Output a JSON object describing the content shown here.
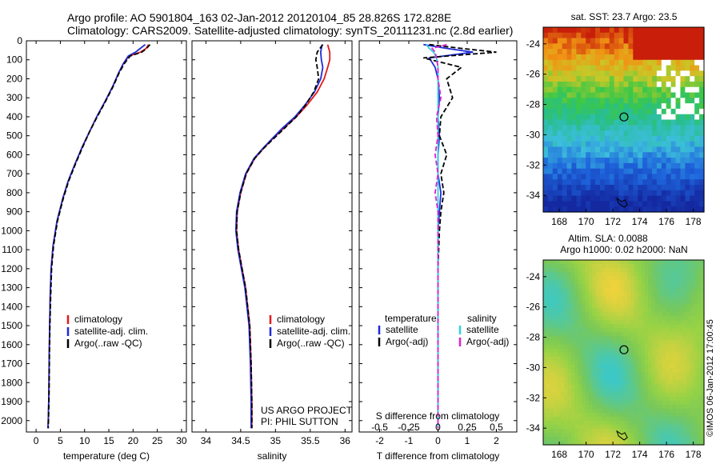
{
  "header": {
    "title_line1": "Argo profile: AO 5901804_163 02-Jan-2012 20120104_85 28.826S 172.828E",
    "title_line2": "Climatology: CARS2009. Satellite-adjusted climatology: synTS_20111231.nc (2.8d earlier)"
  },
  "side_note": "©IMOS 06-Jan-2012 17:00:45",
  "colors": {
    "climatology": "#e41a1c",
    "satellite": "#1f2bd6",
    "argo": "#000000",
    "sal_satellite": "#2fd3e0",
    "sal_argo": "#e020d0"
  },
  "chart_data": [
    {
      "type": "line",
      "panel": "temperature",
      "xlabel": "temperature (deg C)",
      "xlim": [
        -2,
        31
      ],
      "xticks": [
        0,
        5,
        10,
        15,
        20,
        25,
        30
      ],
      "ylim": [
        2060,
        0
      ],
      "yticks": [
        0,
        100,
        200,
        300,
        400,
        500,
        600,
        700,
        800,
        900,
        1000,
        1100,
        1200,
        1300,
        1400,
        1500,
        1600,
        1700,
        1800,
        1900,
        2000
      ],
      "legend": [
        "climatology",
        "satellite-adj. clim.",
        "Argo(..raw -QC)"
      ],
      "series": [
        {
          "name": "climatology",
          "color": "red",
          "x": [
            23.2,
            22.7,
            21.5,
            19.2,
            18,
            17,
            15.8,
            14.2,
            12.5,
            11,
            9.5,
            8,
            6.6,
            5.5,
            4.3,
            3.5,
            3.1,
            2.9,
            2.8,
            2.7,
            2.65,
            2.6,
            2.5,
            2.45
          ],
          "y": [
            20,
            40,
            60,
            80,
            120,
            170,
            240,
            320,
            400,
            480,
            560,
            650,
            740,
            830,
            950,
            1080,
            1200,
            1350,
            1500,
            1650,
            1800,
            1900,
            2000,
            2040
          ]
        },
        {
          "name": "satellite-adj. clim.",
          "color": "blue",
          "x": [
            22.5,
            21.5,
            20.5,
            19,
            18,
            17,
            15.8,
            14.2,
            12.5,
            11,
            9.5,
            8,
            6.6,
            5.5,
            4.3,
            3.5,
            3.1,
            2.9,
            2.8,
            2.7,
            2.65,
            2.6,
            2.5,
            2.45
          ],
          "y": [
            20,
            40,
            60,
            80,
            120,
            170,
            240,
            320,
            400,
            480,
            560,
            650,
            740,
            830,
            950,
            1080,
            1200,
            1350,
            1500,
            1650,
            1800,
            1900,
            2000,
            2040
          ]
        },
        {
          "name": "Argo(..raw -QC)",
          "color": "black",
          "dash": true,
          "x": [
            23.5,
            22.8,
            21.8,
            19.4,
            18.2,
            17.1,
            15.9,
            14.3,
            12.6,
            11,
            9.6,
            8.1,
            6.7,
            5.6,
            4.4,
            3.6,
            3.2,
            3.0,
            2.85,
            2.75,
            2.7,
            2.65,
            2.55,
            2.5
          ],
          "y": [
            20,
            40,
            60,
            80,
            120,
            170,
            240,
            320,
            400,
            480,
            560,
            650,
            740,
            830,
            950,
            1080,
            1200,
            1350,
            1500,
            1650,
            1800,
            1900,
            2000,
            2040
          ]
        }
      ]
    },
    {
      "type": "line",
      "panel": "salinity",
      "xlabel": "salinity",
      "xlim": [
        33.8,
        36.1
      ],
      "xticks": [
        34,
        34.5,
        35,
        35.5,
        36
      ],
      "ylim": [
        2060,
        0
      ],
      "legend": [
        "climatology",
        "satellite-adj. clim.",
        "Argo(..raw -QC)"
      ],
      "annotation": [
        "US ARGO PROJECT",
        "PI: PHIL SUTTON"
      ],
      "series": [
        {
          "name": "climatology",
          "color": "red",
          "x": [
            35.75,
            35.78,
            35.78,
            35.75,
            35.7,
            35.6,
            35.45,
            35.3,
            35.12,
            34.95,
            34.82,
            34.7,
            34.58,
            34.5,
            34.45,
            34.44,
            34.47,
            34.52,
            34.57,
            34.6,
            34.63,
            34.65,
            34.66,
            34.66
          ],
          "y": [
            20,
            60,
            100,
            140,
            200,
            270,
            340,
            400,
            460,
            520,
            570,
            620,
            700,
            800,
            900,
            1000,
            1100,
            1200,
            1300,
            1400,
            1500,
            1700,
            1900,
            2040
          ]
        },
        {
          "name": "satellite-adj. clim.",
          "color": "blue",
          "x": [
            35.67,
            35.65,
            35.66,
            35.68,
            35.65,
            35.56,
            35.42,
            35.28,
            35.1,
            34.94,
            34.81,
            34.69,
            34.57,
            34.49,
            34.44,
            34.43,
            34.46,
            34.51,
            34.56,
            34.59,
            34.62,
            34.64,
            34.65,
            34.65
          ],
          "y": [
            20,
            60,
            100,
            140,
            200,
            270,
            340,
            400,
            460,
            520,
            570,
            620,
            700,
            800,
            900,
            1000,
            1100,
            1200,
            1300,
            1400,
            1500,
            1700,
            1900,
            2040
          ]
        },
        {
          "name": "Argo(..raw -QC)",
          "color": "black",
          "dash": true,
          "x": [
            35.68,
            35.6,
            35.58,
            35.6,
            35.62,
            35.55,
            35.43,
            35.3,
            35.13,
            34.96,
            34.82,
            34.7,
            34.58,
            34.5,
            34.45,
            34.44,
            34.47,
            34.52,
            34.57,
            34.6,
            34.63,
            34.65,
            34.66,
            34.66
          ],
          "y": [
            20,
            60,
            100,
            140,
            200,
            270,
            340,
            400,
            460,
            520,
            570,
            620,
            700,
            800,
            900,
            1000,
            1100,
            1200,
            1300,
            1400,
            1500,
            1700,
            1900,
            2040
          ]
        }
      ]
    },
    {
      "type": "line",
      "panel": "difference",
      "xlabel": "T difference from climatology",
      "xlabel_top": "S difference from climatology",
      "xlim": [
        -2.7,
        2.7
      ],
      "xticks": [
        -2,
        -1,
        0,
        1,
        2
      ],
      "top_ticklabels": [
        "-0.5",
        "-0.25",
        "0",
        "0.25",
        "0.5"
      ],
      "top_tick_x": [
        -2,
        -1,
        0,
        1,
        2
      ],
      "ylim": [
        2060,
        0
      ],
      "legend": {
        "temperature": [
          "satellite",
          "Argo(-adj)"
        ],
        "salinity": [
          "satellite",
          "Argo(-adj)"
        ],
        "temperature_title": "temperature",
        "salinity_title": "salinity"
      },
      "series": [
        {
          "name": "temperature satellite",
          "color": "blue",
          "x": [
            -0.5,
            0.3,
            1.2,
            -0.3,
            -0.1,
            0,
            0.05,
            0,
            0.05,
            0,
            0,
            0.1,
            0.05,
            0,
            0,
            0,
            0,
            0,
            0,
            0
          ],
          "y": [
            20,
            40,
            60,
            90,
            140,
            200,
            300,
            400,
            500,
            600,
            700,
            800,
            900,
            1000,
            1200,
            1400,
            1600,
            1800,
            2000,
            2040
          ]
        },
        {
          "name": "temperature Argo(-adj)",
          "color": "black",
          "dash": true,
          "x": [
            -0.3,
            0.8,
            2.0,
            -0.5,
            0.8,
            0.3,
            0.5,
            0.1,
            0.05,
            0.3,
            0.1,
            0.2,
            0.1,
            0.05,
            0,
            0,
            0,
            0,
            0,
            0
          ],
          "y": [
            20,
            40,
            60,
            90,
            140,
            200,
            300,
            400,
            500,
            600,
            700,
            800,
            900,
            1000,
            1200,
            1400,
            1600,
            1800,
            2000,
            2040
          ]
        },
        {
          "name": "salinity satellite",
          "color": "cyan",
          "x": [
            -0.4,
            -0.3,
            -0.15,
            -0.05,
            0,
            0,
            0,
            0,
            0,
            0,
            0,
            0,
            0,
            0,
            0,
            0,
            0,
            0,
            0,
            0
          ],
          "y": [
            20,
            40,
            60,
            90,
            140,
            200,
            300,
            400,
            500,
            600,
            700,
            800,
            900,
            1000,
            1200,
            1400,
            1600,
            1800,
            2000,
            2040
          ]
        },
        {
          "name": "salinity Argo(-adj)",
          "color": "magenta",
          "dash": true,
          "x": [
            0.3,
            -0.2,
            -0.1,
            -0.05,
            0,
            0,
            0.1,
            -0.05,
            0,
            -0.1,
            0,
            -0.1,
            0,
            0,
            0,
            0,
            0,
            0,
            0,
            0
          ],
          "y": [
            20,
            40,
            60,
            90,
            140,
            200,
            300,
            400,
            500,
            600,
            700,
            800,
            900,
            1000,
            1200,
            1400,
            1600,
            1800,
            2000,
            2040
          ]
        }
      ]
    },
    {
      "type": "heatmap",
      "panel": "sst_map",
      "title": "sat. SST: 23.7  Argo: 23.5",
      "xlim": [
        166.8,
        178.8
      ],
      "ylim": [
        -35.1,
        -22.9
      ],
      "xticks": [
        168,
        170,
        172,
        174,
        176,
        178
      ],
      "yticks": [
        -24,
        -26,
        -28,
        -30,
        -32,
        -34
      ],
      "marker": {
        "lon": 172.828,
        "lat": -28.826
      }
    },
    {
      "type": "heatmap",
      "panel": "sla_map",
      "title_line1": "Altim. SLA: 0.0088",
      "title_line2": "Argo h1000: 0.02 h2000: NaN",
      "xlim": [
        166.8,
        178.8
      ],
      "ylim": [
        -35.1,
        -22.9
      ],
      "xticks": [
        168,
        170,
        172,
        174,
        176,
        178
      ],
      "yticks": [
        -24,
        -26,
        -28,
        -30,
        -32,
        -34
      ],
      "marker": {
        "lon": 172.828,
        "lat": -28.826
      }
    }
  ]
}
